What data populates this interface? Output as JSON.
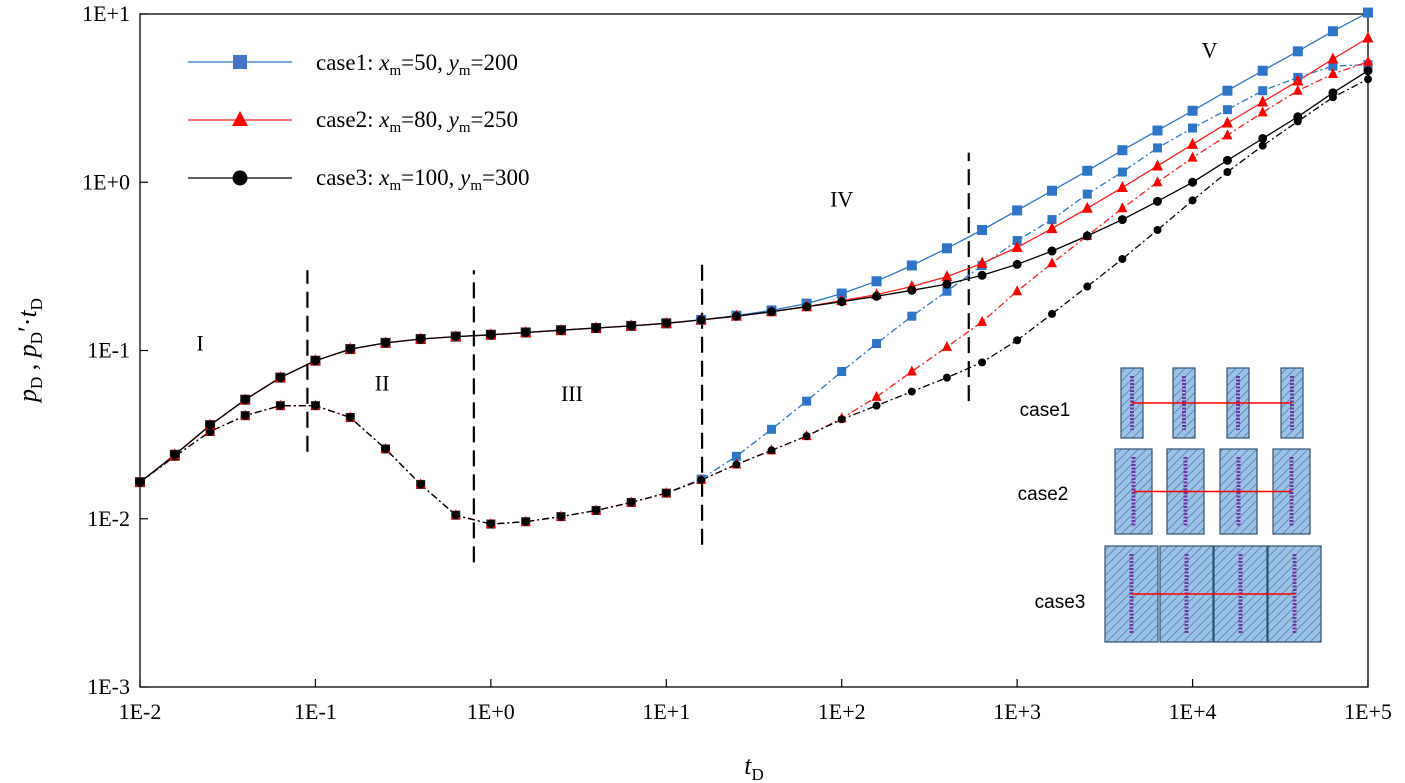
{
  "chart_data": {
    "type": "line",
    "xscale": "log",
    "yscale": "log",
    "xlim": [
      0.01,
      100000
    ],
    "ylim": [
      0.001,
      10
    ],
    "xticks": [
      {
        "value": 0.01,
        "label": "1E-2"
      },
      {
        "value": 0.1,
        "label": "1E-1"
      },
      {
        "value": 1,
        "label": "1E+0"
      },
      {
        "value": 10,
        "label": "1E+1"
      },
      {
        "value": 100,
        "label": "1E+2"
      },
      {
        "value": 1000,
        "label": "1E+3"
      },
      {
        "value": 10000,
        "label": "1E+4"
      },
      {
        "value": 100000,
        "label": "1E+5"
      }
    ],
    "yticks": [
      {
        "value": 0.001,
        "label": "1E-3"
      },
      {
        "value": 0.01,
        "label": "1E-2"
      },
      {
        "value": 0.1,
        "label": "1E-1"
      },
      {
        "value": 1,
        "label": "1E+0"
      },
      {
        "value": 10,
        "label": "1E+1"
      }
    ],
    "xlabel": {
      "main": "t",
      "sub": "D"
    },
    "ylabel": {
      "p1": "p",
      "s1": "D",
      "sep": " , ",
      "p2": "p",
      "s2": "D",
      "prime": "′·",
      "p3": "t",
      "s3": "D"
    },
    "grid": false,
    "legend_position": "top-left",
    "x": [
      0.01,
      0.0158,
      0.0251,
      0.0398,
      0.0631,
      0.1,
      0.158,
      0.251,
      0.398,
      0.631,
      1,
      1.58,
      2.51,
      3.98,
      6.31,
      10,
      15.8,
      25.1,
      39.8,
      63.1,
      100,
      158,
      251,
      398,
      631,
      1000,
      1580,
      2510,
      3980,
      6310,
      10000,
      15800,
      25100,
      39800,
      63100,
      100000
    ],
    "series": [
      {
        "name": "case1",
        "legend": {
          "pre": "case1: ",
          "x": "x",
          "xs": "m",
          "xv": "=50, ",
          "y": "y",
          "ys": "m",
          "yv": "=200"
        },
        "color": "#2e75c8",
        "marker": "square",
        "kind": "pressure",
        "values": [
          0.0165,
          0.024,
          0.036,
          0.051,
          0.069,
          0.087,
          0.102,
          0.111,
          0.117,
          0.121,
          0.124,
          0.128,
          0.132,
          0.136,
          0.14,
          0.145,
          0.152,
          0.161,
          0.173,
          0.19,
          0.218,
          0.258,
          0.32,
          0.405,
          0.52,
          0.68,
          0.89,
          1.17,
          1.55,
          2.03,
          2.66,
          3.5,
          4.6,
          6.0,
          7.9,
          10.2
        ]
      },
      {
        "name": "case2",
        "legend": {
          "pre": "case2: ",
          "x": "x",
          "xs": "m",
          "xv": "=80, ",
          "y": "y",
          "ys": "m",
          "yv": "=250"
        },
        "color": "#ff1a1a",
        "marker": "triangle",
        "kind": "pressure",
        "values": [
          0.0165,
          0.024,
          0.036,
          0.051,
          0.069,
          0.087,
          0.102,
          0.111,
          0.117,
          0.121,
          0.124,
          0.128,
          0.132,
          0.136,
          0.14,
          0.145,
          0.152,
          0.16,
          0.17,
          0.182,
          0.198,
          0.215,
          0.24,
          0.275,
          0.33,
          0.41,
          0.53,
          0.7,
          0.93,
          1.25,
          1.68,
          2.25,
          3.0,
          4.0,
          5.4,
          7.2
        ]
      },
      {
        "name": "case3",
        "legend": {
          "pre": "case3: ",
          "x": "x",
          "xs": "m",
          "xv": "=100, ",
          "y": "y",
          "ys": "m",
          "yv": "=300"
        },
        "color": "#000000",
        "marker": "circle",
        "kind": "pressure",
        "values": [
          0.0165,
          0.024,
          0.036,
          0.051,
          0.069,
          0.087,
          0.102,
          0.111,
          0.117,
          0.121,
          0.124,
          0.128,
          0.132,
          0.136,
          0.14,
          0.145,
          0.152,
          0.16,
          0.17,
          0.182,
          0.195,
          0.21,
          0.228,
          0.248,
          0.28,
          0.325,
          0.39,
          0.48,
          0.6,
          0.77,
          1.0,
          1.35,
          1.82,
          2.45,
          3.4,
          4.6
        ]
      },
      {
        "name": "case1 derivative",
        "color": "#2e75c8",
        "marker": "square",
        "kind": "derivative",
        "values": [
          0.0165,
          0.0235,
          0.033,
          0.041,
          0.047,
          0.047,
          0.04,
          0.026,
          0.016,
          0.0105,
          0.0093,
          0.0096,
          0.0103,
          0.0112,
          0.0125,
          0.0142,
          0.0172,
          0.0235,
          0.034,
          0.05,
          0.075,
          0.11,
          0.16,
          0.225,
          0.32,
          0.45,
          0.6,
          0.85,
          1.15,
          1.6,
          2.1,
          2.7,
          3.5,
          4.2,
          4.9,
          5.0
        ]
      },
      {
        "name": "case2 derivative",
        "color": "#ff1a1a",
        "marker": "triangle",
        "kind": "derivative",
        "values": [
          0.0165,
          0.0235,
          0.033,
          0.041,
          0.047,
          0.047,
          0.04,
          0.026,
          0.016,
          0.0105,
          0.0093,
          0.0096,
          0.0103,
          0.0112,
          0.0125,
          0.0142,
          0.017,
          0.021,
          0.0255,
          0.031,
          0.0395,
          0.053,
          0.075,
          0.105,
          0.148,
          0.225,
          0.33,
          0.48,
          0.7,
          1.0,
          1.4,
          1.9,
          2.6,
          3.5,
          4.4,
          5.2
        ]
      },
      {
        "name": "case3 derivative",
        "color": "#000000",
        "marker": "circle",
        "kind": "derivative",
        "values": [
          0.0165,
          0.0235,
          0.033,
          0.041,
          0.047,
          0.047,
          0.04,
          0.026,
          0.016,
          0.0105,
          0.0093,
          0.0096,
          0.0103,
          0.0112,
          0.0125,
          0.0142,
          0.017,
          0.021,
          0.0255,
          0.031,
          0.039,
          0.047,
          0.057,
          0.069,
          0.085,
          0.115,
          0.165,
          0.24,
          0.35,
          0.52,
          0.78,
          1.15,
          1.65,
          2.3,
          3.2,
          4.1
        ]
      }
    ],
    "boundaries": [
      {
        "x": 0.09,
        "y_from": 0.025,
        "y_to": 0.3
      },
      {
        "x": 0.8,
        "y_from": 0.0055,
        "y_to": 0.3
      },
      {
        "x": 16,
        "y_from": 0.007,
        "y_to": 0.36
      },
      {
        "x": 530,
        "y_from": 0.05,
        "y_to": 1.5
      }
    ],
    "regions": [
      {
        "label": "I",
        "x": 0.022,
        "y": 0.1
      },
      {
        "label": "II",
        "x": 0.24,
        "y": 0.058
      },
      {
        "label": "III",
        "x": 2.9,
        "y": 0.05
      },
      {
        "label": "IV",
        "x": 100,
        "y": 0.72
      },
      {
        "label": "V",
        "x": 12500,
        "y": 5.5
      }
    ],
    "inset": {
      "rows": [
        {
          "label": "case1",
          "size": "small"
        },
        {
          "label": "case2",
          "size": "medium"
        },
        {
          "label": "case3",
          "size": "large"
        }
      ],
      "fracture_count_per_row": 4,
      "block_fill": "#9cc3e6",
      "block_border": "#2f4f70",
      "fracture_color": "#7030a0",
      "wellbore_color": "#ff0000"
    }
  }
}
